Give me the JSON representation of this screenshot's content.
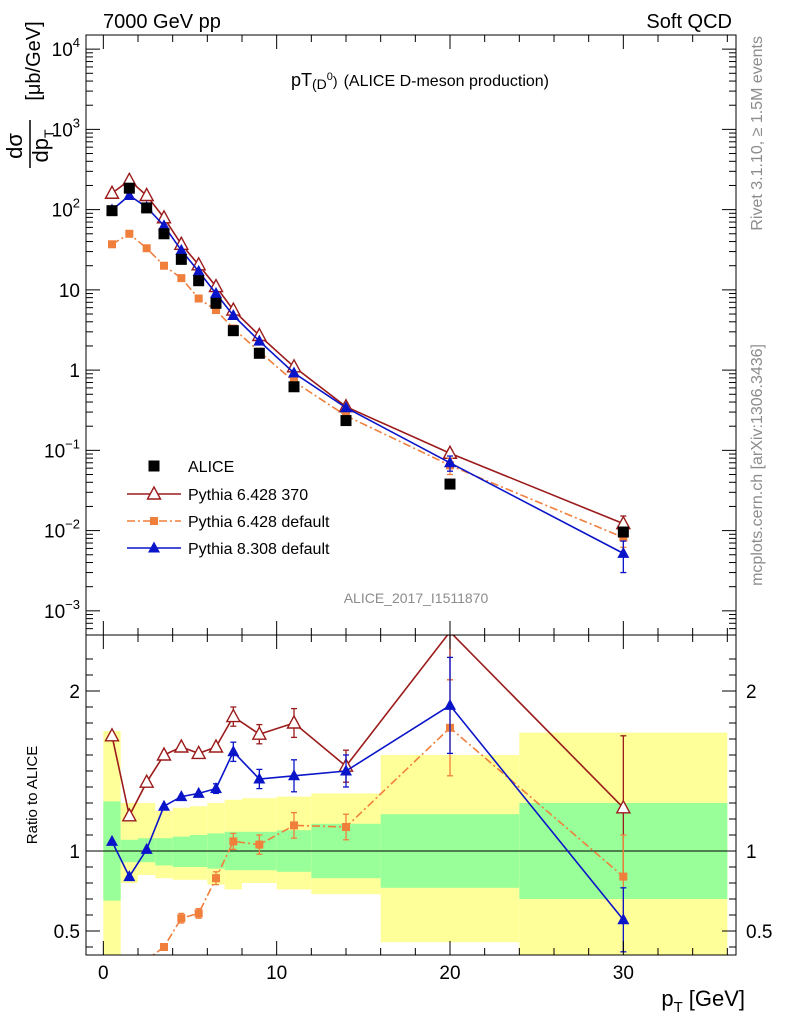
{
  "header": {
    "left": "7000 GeV pp",
    "right": "Soft QCD",
    "side_top": "Rivet 3.1.10, ≥ 1.5M events",
    "side_bottom": "mcplots.cern.ch [arXiv:1306.3436]"
  },
  "chart_data": [
    {
      "type": "scatter",
      "title_main": "pT",
      "title_sub": "(D",
      "title_sup": "0",
      "title_close": ")",
      "title_rest": "(ALICE D-meson production)",
      "analysis_tag": "ALICE_2017_I1511870",
      "ylabel_num": "dσ",
      "ylabel_den": "dp",
      "ylabel_den_sub": "T",
      "ylabel_unit": "[μb/GeV]",
      "yscale": "log",
      "ylim": [
        0.0005,
        15000
      ],
      "xlim": [
        -1,
        36.5
      ],
      "ytick_labels": [
        {
          "v": 0.001,
          "b": "10",
          "e": "−3"
        },
        {
          "v": 0.01,
          "b": "10",
          "e": "−2"
        },
        {
          "v": 0.1,
          "b": "10",
          "e": "−1"
        },
        {
          "v": 1,
          "b": "1",
          "e": ""
        },
        {
          "v": 10,
          "b": "10",
          "e": ""
        },
        {
          "v": 100,
          "b": "10",
          "e": "2"
        },
        {
          "v": 1000,
          "b": "10",
          "e": "3"
        },
        {
          "v": 10000,
          "b": "10",
          "e": "4"
        }
      ],
      "legend_position": "lower-left",
      "series": [
        {
          "name": "ALICE",
          "color": "#000000",
          "marker": "square",
          "line": "none",
          "x": [
            0.5,
            1.5,
            2.5,
            3.5,
            4.5,
            5.5,
            6.5,
            7.5,
            9,
            11,
            14,
            20,
            30
          ],
          "y": [
            97,
            185,
            105,
            50,
            24,
            13,
            6.8,
            3.1,
            1.62,
            0.62,
            0.235,
            0.038,
            0.0096
          ]
        },
        {
          "name": "Pythia 6.428 370",
          "color": "#9b1b1b",
          "marker": "triangle-open",
          "line": "solid",
          "x": [
            0.5,
            1.5,
            2.5,
            3.5,
            4.5,
            5.5,
            6.5,
            7.5,
            9,
            11,
            14,
            20,
            30
          ],
          "y": [
            160,
            232,
            150,
            79,
            37,
            20.5,
            11,
            5.6,
            2.7,
            1.1,
            0.35,
            0.092,
            0.0122
          ],
          "yerr": [
            0,
            0,
            0,
            0,
            0,
            0,
            0,
            0,
            0,
            0,
            0,
            0.008,
            0.003
          ]
        },
        {
          "name": "Pythia 6.428 default",
          "color": "#f07f3c",
          "marker": "square-small",
          "line": "dashdot",
          "x": [
            0.5,
            1.5,
            2.5,
            3.5,
            4.5,
            5.5,
            6.5,
            7.5,
            9,
            11,
            14,
            20,
            30
          ],
          "y": [
            37,
            50,
            33,
            20,
            14,
            7.8,
            5.6,
            3.3,
            1.7,
            0.72,
            0.27,
            0.065,
            0.0082
          ],
          "yerr": [
            0,
            0,
            0,
            0,
            0,
            0,
            0,
            0,
            0,
            0,
            0,
            0.015,
            0.002
          ]
        },
        {
          "name": "Pythia 8.308 default",
          "color": "#0a14c8",
          "marker": "triangle",
          "line": "solid",
          "x": [
            0.5,
            1.5,
            2.5,
            3.5,
            4.5,
            5.5,
            6.5,
            7.5,
            9,
            11,
            14,
            20,
            30
          ],
          "y": [
            99,
            150,
            107,
            63,
            31,
            17,
            9,
            4.8,
            2.3,
            0.92,
            0.34,
            0.07,
            0.0052
          ],
          "yerr": [
            0,
            0,
            0,
            0,
            0,
            0,
            0,
            0,
            0,
            0,
            0,
            0.015,
            0.0022
          ]
        }
      ]
    },
    {
      "type": "scatter",
      "ylabel": "Ratio to ALICE",
      "xlabel_main": "p",
      "xlabel_sub": "T",
      "xlabel_unit": "[GeV]",
      "xlim": [
        -1,
        36.5
      ],
      "ylim": [
        0.35,
        2.35
      ],
      "xticks": [
        0,
        10,
        20,
        30
      ],
      "xtick_labels": [
        "0",
        "10",
        "20",
        "30"
      ],
      "yticks": [
        0.5,
        1,
        2
      ],
      "ytick_labels": [
        "0.5",
        "1",
        "2"
      ],
      "reference_line": 1,
      "bands": {
        "x_edges": [
          0,
          1,
          2,
          3,
          4,
          5,
          6,
          7,
          8,
          10,
          12,
          16,
          24,
          36
        ],
        "green_lo": [
          0.69,
          0.93,
          0.93,
          0.91,
          0.9,
          0.9,
          0.89,
          0.88,
          0.88,
          0.87,
          0.83,
          0.77,
          0.7
        ],
        "green_hi": [
          1.31,
          1.07,
          1.08,
          1.08,
          1.09,
          1.1,
          1.11,
          1.12,
          1.12,
          1.13,
          1.17,
          1.23,
          1.3
        ],
        "yellow_lo": [
          0.35,
          0.8,
          0.85,
          0.83,
          0.82,
          0.82,
          0.79,
          0.76,
          0.8,
          0.76,
          0.73,
          0.43,
          0.35
        ],
        "yellow_hi": [
          1.75,
          1.3,
          1.3,
          1.25,
          1.27,
          1.28,
          1.3,
          1.32,
          1.33,
          1.34,
          1.36,
          1.6,
          1.74
        ],
        "green_color": "#99ff99",
        "yellow_color": "#ffff99"
      },
      "series": [
        {
          "name": "Pythia 6.428 370",
          "color": "#9b1b1b",
          "marker": "triangle-open",
          "line": "solid",
          "x": [
            0.5,
            1.5,
            2.5,
            3.5,
            4.5,
            5.5,
            6.5,
            7.5,
            9,
            11,
            14,
            20,
            30
          ],
          "y": [
            1.72,
            1.22,
            1.43,
            1.6,
            1.65,
            1.61,
            1.65,
            1.84,
            1.73,
            1.8,
            1.53,
            2.37,
            1.27
          ],
          "yerr": [
            0,
            0,
            0,
            0,
            0,
            0,
            0,
            0.06,
            0.06,
            0.09,
            0.1,
            0.3,
            0.45
          ]
        },
        {
          "name": "Pythia 6.428 default",
          "color": "#f07f3c",
          "marker": "square-small",
          "line": "dashdot",
          "x": [
            1.5,
            2.5,
            3.5,
            4.5,
            5.5,
            6.5,
            7.5,
            9,
            11,
            14,
            20,
            30
          ],
          "y": [
            0.27,
            0.32,
            0.4,
            0.58,
            0.61,
            0.83,
            1.06,
            1.04,
            1.16,
            1.15,
            1.77,
            0.84
          ],
          "yerr": [
            0,
            0,
            0,
            0.03,
            0.03,
            0.04,
            0.05,
            0.06,
            0.08,
            0.08,
            0.3,
            0.26
          ]
        },
        {
          "name": "Pythia 8.308 default",
          "color": "#0a14c8",
          "marker": "triangle",
          "line": "solid",
          "x": [
            0.5,
            1.5,
            2.5,
            3.5,
            4.5,
            5.5,
            6.5,
            7.5,
            9,
            11,
            14,
            20,
            30
          ],
          "y": [
            1.06,
            0.84,
            1.01,
            1.28,
            1.34,
            1.36,
            1.39,
            1.62,
            1.45,
            1.47,
            1.5,
            1.91,
            0.57
          ],
          "yerr": [
            0,
            0,
            0,
            0,
            0,
            0,
            0.03,
            0.06,
            0.06,
            0.1,
            0.1,
            0.3,
            0.2
          ]
        }
      ]
    }
  ]
}
